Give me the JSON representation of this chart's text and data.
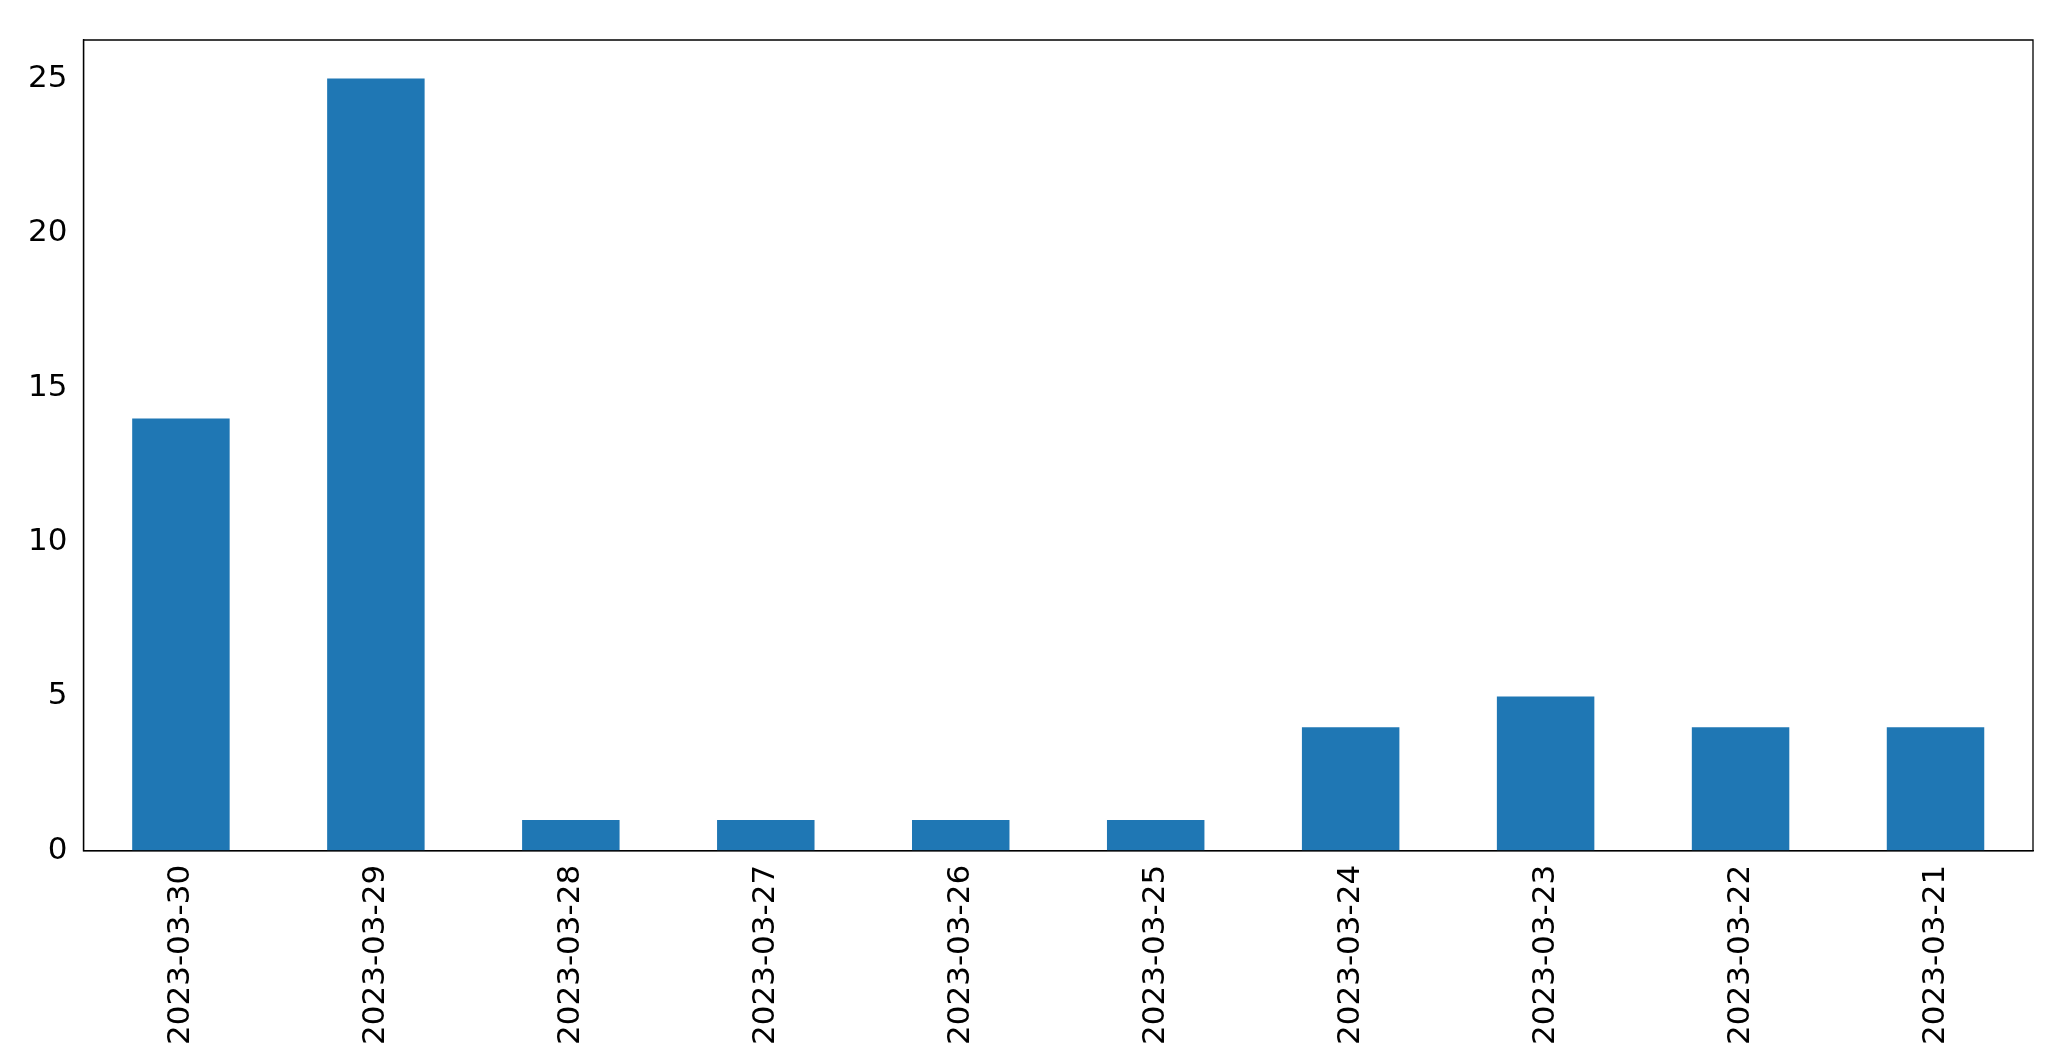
{
  "chart_data": {
    "type": "bar",
    "categories": [
      "2023-03-30",
      "2023-03-29",
      "2023-03-28",
      "2023-03-27",
      "2023-03-26",
      "2023-03-25",
      "2023-03-24",
      "2023-03-23",
      "2023-03-22",
      "2023-03-21"
    ],
    "values": [
      14,
      25,
      1,
      1,
      1,
      1,
      4,
      5,
      4,
      4
    ],
    "color": "#1f77b4",
    "ylim": [
      0,
      26.25
    ],
    "yticks": [
      0,
      5,
      10,
      15,
      20,
      25
    ],
    "grid": false,
    "legend": false
  }
}
